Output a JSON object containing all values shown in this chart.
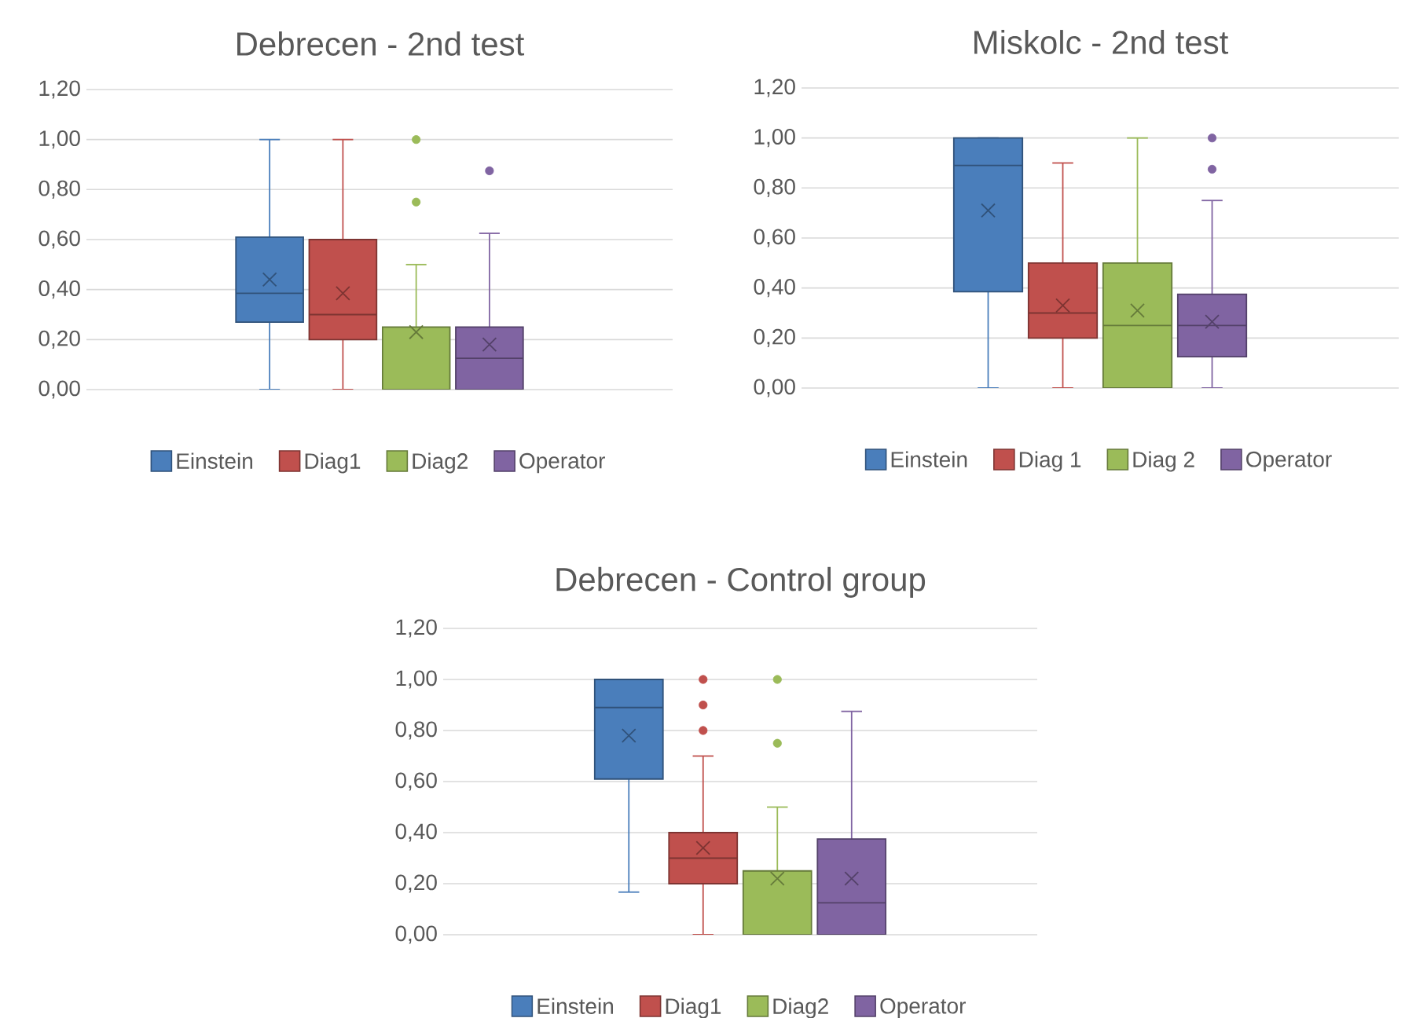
{
  "chart_data": [
    {
      "type": "box",
      "title": "Debrecen - 2nd test",
      "categories": [
        null
      ],
      "grid": "y",
      "legend": "bottom",
      "ylim": [
        0,
        1.2
      ],
      "yticks": [
        {
          "value": 0,
          "label": "0,00"
        },
        {
          "value": 0.2,
          "label": "0,20"
        },
        {
          "value": 0.4,
          "label": "0,40"
        },
        {
          "value": 0.6,
          "label": "0,60"
        },
        {
          "value": 0.8,
          "label": "0,80"
        },
        {
          "value": 1.0,
          "label": "1,00"
        },
        {
          "value": 1.2,
          "label": "1,20"
        }
      ],
      "series": [
        {
          "name": "Einstein",
          "color": "#4a7ebb",
          "boxes": [
            {
              "low": 0,
              "q1": 0.27,
              "median": 0.385,
              "q3": 0.61,
              "high": 1.0,
              "mean": 0.44
            }
          ]
        },
        {
          "name": "Diag1",
          "color": "#c0504d",
          "boxes": [
            {
              "low": 0,
              "q1": 0.2,
              "median": 0.3,
              "q3": 0.6,
              "high": 1.0,
              "mean": 0.385
            }
          ]
        },
        {
          "name": "Diag2",
          "color": "#9bbb59",
          "boxes": [
            {
              "low": 0,
              "q1": 0,
              "median": 0,
              "q3": 0.25,
              "high": 0.5,
              "mean": 0.23,
              "outliers": [
                0.75,
                1.0
              ]
            }
          ]
        },
        {
          "name": "Operator",
          "color": "#8064a2",
          "boxes": [
            {
              "low": 0,
              "q1": 0,
              "median": 0.125,
              "q3": 0.25,
              "high": 0.625,
              "mean": 0.18,
              "outliers": [
                0.875
              ]
            }
          ]
        }
      ]
    },
    {
      "type": "box",
      "title": "Miskolc - 2nd test",
      "categories": [
        null
      ],
      "grid": "y",
      "legend": "bottom",
      "ylim": [
        0,
        1.2
      ],
      "yticks": [
        {
          "value": 0,
          "label": "0,00"
        },
        {
          "value": 0.2,
          "label": "0,20"
        },
        {
          "value": 0.4,
          "label": "0,40"
        },
        {
          "value": 0.6,
          "label": "0,60"
        },
        {
          "value": 0.8,
          "label": "0,80"
        },
        {
          "value": 1.0,
          "label": "1,00"
        },
        {
          "value": 1.2,
          "label": "1,20"
        }
      ],
      "series": [
        {
          "name": "Einstein",
          "color": "#4a7ebb",
          "boxes": [
            {
              "low": 0,
              "q1": 0.385,
              "median": 0.89,
              "q3": 1.0,
              "high": 1.0,
              "mean": 0.71
            }
          ]
        },
        {
          "name": "Diag 1",
          "color": "#c0504d",
          "boxes": [
            {
              "low": 0,
              "q1": 0.2,
              "median": 0.3,
              "q3": 0.5,
              "high": 0.9,
              "mean": 0.33
            }
          ]
        },
        {
          "name": "Diag 2",
          "color": "#9bbb59",
          "boxes": [
            {
              "low": 0,
              "q1": 0,
              "median": 0.25,
              "q3": 0.5,
              "high": 1.0,
              "mean": 0.31
            }
          ]
        },
        {
          "name": "Operator",
          "color": "#8064a2",
          "boxes": [
            {
              "low": 0,
              "q1": 0.125,
              "median": 0.25,
              "q3": 0.375,
              "high": 0.75,
              "mean": 0.265,
              "outliers": [
                0.875,
                1.0
              ]
            }
          ]
        }
      ]
    },
    {
      "type": "box",
      "title": "Debrecen - Control group",
      "categories": [
        null
      ],
      "grid": "y",
      "legend": "bottom",
      "ylim": [
        0,
        1.2
      ],
      "yticks": [
        {
          "value": 0,
          "label": "0,00"
        },
        {
          "value": 0.2,
          "label": "0,20"
        },
        {
          "value": 0.4,
          "label": "0,40"
        },
        {
          "value": 0.6,
          "label": "0,60"
        },
        {
          "value": 0.8,
          "label": "0,80"
        },
        {
          "value": 1.0,
          "label": "1,00"
        },
        {
          "value": 1.2,
          "label": "1,20"
        }
      ],
      "series": [
        {
          "name": "Einstein",
          "color": "#4a7ebb",
          "boxes": [
            {
              "low": 0.167,
              "q1": 0.61,
              "median": 0.89,
              "q3": 1.0,
              "high": 1.0,
              "mean": 0.78
            }
          ]
        },
        {
          "name": "Diag1",
          "color": "#c0504d",
          "boxes": [
            {
              "low": 0,
              "q1": 0.2,
              "median": 0.3,
              "q3": 0.4,
              "high": 0.7,
              "mean": 0.34,
              "outliers": [
                0.8,
                0.9,
                1.0
              ]
            }
          ]
        },
        {
          "name": "Diag2",
          "color": "#9bbb59",
          "boxes": [
            {
              "low": 0,
              "q1": 0,
              "median": 0,
              "q3": 0.25,
              "high": 0.5,
              "mean": 0.22,
              "outliers": [
                0.75,
                1.0
              ]
            }
          ]
        },
        {
          "name": "Operator",
          "color": "#8064a2",
          "boxes": [
            {
              "low": 0,
              "q1": 0,
              "median": 0.125,
              "q3": 0.375,
              "high": 0.875,
              "mean": 0.22
            }
          ]
        }
      ]
    }
  ]
}
